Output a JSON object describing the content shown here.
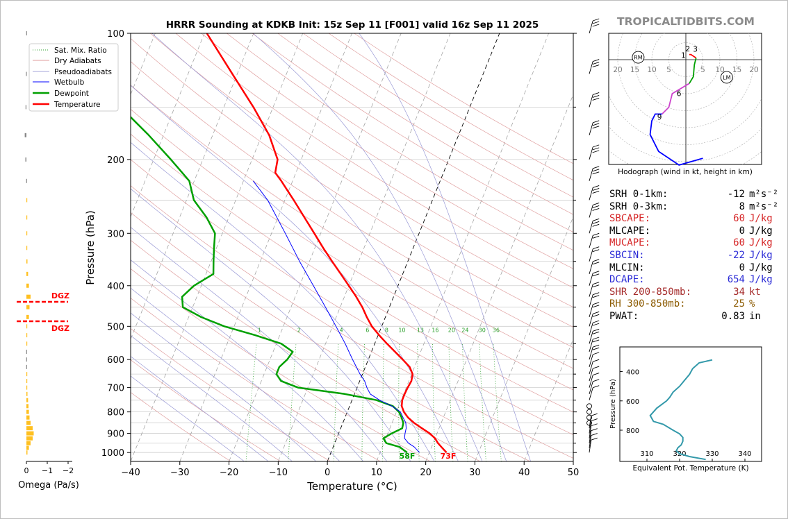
{
  "chart_data": [
    {
      "type": "skew-t log-p sounding",
      "title": "HRRR Sounding at KDKB Init: 15z Sep 11 [F001] valid 16z Sep 11 2025",
      "xlabel": "Temperature (°C)",
      "ylabel": "Pressure (hPa)",
      "xlim": [
        -40,
        50
      ],
      "ylim": [
        1050,
        100
      ],
      "y_scale": "log",
      "x_ticks": [
        "−40",
        "−30",
        "−20",
        "−10",
        "0",
        "10",
        "20",
        "30",
        "40",
        "50"
      ],
      "y_ticks": [
        "100",
        "200",
        "300",
        "400",
        "500",
        "600",
        "700",
        "800",
        "900",
        "1000"
      ],
      "legend": [
        "Sat. Mix. Ratio",
        "Dry Adiabats",
        "Pseudoadiabats",
        "Wetbulb",
        "Dewpoint",
        "Temperature"
      ],
      "legend_position": "upper-left",
      "mixing_ratio_labels": [
        "1",
        "2",
        "4",
        "6",
        "8",
        "10",
        "13",
        "16",
        "20",
        "24",
        "30",
        "36"
      ],
      "surface_labels": {
        "dewpoint": "58F",
        "temperature": "73F"
      },
      "series": [
        {
          "name": "Temperature",
          "color": "#ff0000",
          "points": [
            [
              1000,
              23.5
            ],
            [
              970,
              22
            ],
            [
              950,
              21
            ],
            [
              925,
              20
            ],
            [
              900,
              18.5
            ],
            [
              875,
              16.5
            ],
            [
              850,
              14.5
            ],
            [
              825,
              12.8
            ],
            [
              800,
              11.5
            ],
            [
              775,
              10.6
            ],
            [
              750,
              10.2
            ],
            [
              725,
              10.2
            ],
            [
              700,
              10.3
            ],
            [
              675,
              10.5
            ],
            [
              650,
              10.2
            ],
            [
              625,
              9.0
            ],
            [
              600,
              7.0
            ],
            [
              575,
              4.8
            ],
            [
              550,
              2.5
            ],
            [
              525,
              0.2
            ],
            [
              500,
              -2.0
            ],
            [
              475,
              -3.8
            ],
            [
              450,
              -5.5
            ],
            [
              425,
              -7.6
            ],
            [
              400,
              -10.0
            ],
            [
              375,
              -12.6
            ],
            [
              350,
              -15.4
            ],
            [
              325,
              -18.3
            ],
            [
              300,
              -21.3
            ],
            [
              275,
              -24.6
            ],
            [
              250,
              -28.2
            ],
            [
              225,
              -32.3
            ],
            [
              215,
              -34.2
            ],
            [
              200,
              -34.8
            ],
            [
              175,
              -38.5
            ],
            [
              150,
              -44.0
            ],
            [
              125,
              -51.0
            ],
            [
              100,
              -59.5
            ]
          ]
        },
        {
          "name": "Dewpoint",
          "color": "#00a000",
          "points": [
            [
              1000,
              15.5
            ],
            [
              970,
              13.5
            ],
            [
              950,
              10.5
            ],
            [
              925,
              9.5
            ],
            [
              900,
              10.8
            ],
            [
              875,
              12.5
            ],
            [
              850,
              12.3
            ],
            [
              825,
              11.5
            ],
            [
              800,
              10.5
            ],
            [
              775,
              8.8
            ],
            [
              750,
              5.0
            ],
            [
              725,
              -2.0
            ],
            [
              700,
              -12.0
            ],
            [
              675,
              -16.0
            ],
            [
              650,
              -17.5
            ],
            [
              625,
              -17.5
            ],
            [
              600,
              -16.5
            ],
            [
              575,
              -16.0
            ],
            [
              550,
              -19.0
            ],
            [
              525,
              -25.0
            ],
            [
              500,
              -32.0
            ],
            [
              475,
              -37.5
            ],
            [
              450,
              -42.0
            ],
            [
              425,
              -43.0
            ],
            [
              400,
              -41.5
            ],
            [
              375,
              -38.5
            ],
            [
              350,
              -39.5
            ],
            [
              325,
              -40.5
            ],
            [
              300,
              -41.5
            ],
            [
              275,
              -44.5
            ],
            [
              250,
              -48.5
            ],
            [
              225,
              -51.0
            ],
            [
              200,
              -56.5
            ],
            [
              175,
              -63.0
            ],
            [
              150,
              -71.0
            ],
            [
              125,
              -77.5
            ],
            [
              100,
              -86.5
            ]
          ]
        },
        {
          "name": "Wetbulb",
          "color": "#0000ff",
          "points": [
            [
              1000,
              18
            ],
            [
              970,
              16.5
            ],
            [
              950,
              15
            ],
            [
              925,
              13.8
            ],
            [
              900,
              13.5
            ],
            [
              875,
              13.3
            ],
            [
              850,
              12.8
            ],
            [
              825,
              11.8
            ],
            [
              800,
              10.8
            ],
            [
              775,
              8.6
            ],
            [
              750,
              5.6
            ],
            [
              725,
              3.2
            ],
            [
              700,
              2.0
            ],
            [
              675,
              1.0
            ],
            [
              650,
              -0.5
            ],
            [
              600,
              -3.2
            ],
            [
              550,
              -6.0
            ],
            [
              500,
              -9.3
            ],
            [
              450,
              -13.0
            ],
            [
              400,
              -17.2
            ],
            [
              350,
              -22.0
            ],
            [
              300,
              -27.2
            ],
            [
              250,
              -33.5
            ],
            [
              225,
              -38.0
            ]
          ]
        }
      ],
      "omega_panel": {
        "xlabel": "Omega (Pa/s)",
        "x_ticks": [
          "0",
          "−1",
          "−2"
        ],
        "dgz_labels": [
          "DGZ",
          "DGZ"
        ],
        "values": [
          [
            1000,
            0.05
          ],
          [
            975,
            0.12
          ],
          [
            950,
            0.2
          ],
          [
            925,
            0.3
          ],
          [
            900,
            0.35
          ],
          [
            875,
            0.3
          ],
          [
            850,
            0.2
          ],
          [
            825,
            0.15
          ],
          [
            800,
            0.12
          ],
          [
            775,
            0.1
          ],
          [
            750,
            0.08
          ],
          [
            725,
            0.05
          ],
          [
            700,
            0.03
          ],
          [
            675,
            0.01
          ],
          [
            650,
            0.0
          ],
          [
            625,
            -0.01
          ],
          [
            600,
            -0.01
          ],
          [
            575,
            -0.01
          ],
          [
            550,
            0.0
          ],
          [
            525,
            0.01
          ],
          [
            500,
            0.04
          ],
          [
            475,
            0.12
          ],
          [
            450,
            0.15
          ],
          [
            425,
            0.2
          ],
          [
            400,
            0.12
          ],
          [
            375,
            0.08
          ],
          [
            350,
            0.05
          ],
          [
            325,
            0.03
          ],
          [
            300,
            0.02
          ],
          [
            275,
            0.02
          ],
          [
            250,
            0.01
          ],
          [
            225,
            -0.01
          ],
          [
            200,
            -0.05
          ],
          [
            175,
            -0.08
          ],
          [
            150,
            -0.04
          ],
          [
            125,
            -0.02
          ],
          [
            100,
            -0.01
          ]
        ]
      },
      "wind_barbs": {
        "pressures": [
          1000,
          975,
          950,
          925,
          900,
          875,
          850,
          825,
          800,
          775,
          750,
          725,
          700,
          675,
          650,
          625,
          600,
          575,
          550,
          525,
          500,
          475,
          450,
          425,
          400,
          375,
          350,
          325,
          300,
          275,
          250,
          225,
          200,
          175,
          150,
          125,
          100
        ]
      }
    },
    {
      "type": "hodograph",
      "caption": "Hodograph (wind in kt, height in km)",
      "ring_labels": [
        "20",
        "15",
        "10",
        "5",
        "5",
        "10",
        "15",
        "20"
      ],
      "height_labels": [
        "1",
        "2",
        "3",
        "6",
        "9"
      ],
      "storm_motion_labels": [
        "RM",
        "LM"
      ],
      "points": [
        [
          1,
          1.5
        ],
        [
          1.5,
          1.5
        ],
        [
          3,
          0.5
        ],
        [
          2.5,
          -1.5
        ],
        [
          2.2,
          -5
        ],
        [
          1,
          -7
        ],
        [
          -4,
          -10
        ],
        [
          -5,
          -14
        ],
        [
          -7,
          -16
        ],
        [
          -9,
          -16
        ],
        [
          -10,
          -18
        ],
        [
          -10.5,
          -22
        ],
        [
          -8,
          -27
        ],
        [
          -2,
          -31
        ],
        [
          5,
          -29
        ]
      ],
      "segment_colors": [
        "#ff0000",
        "#00a000",
        "#cc44cc",
        "#0000ff"
      ]
    },
    {
      "type": "line",
      "xlabel": "Equivalent Pot. Temperature (K)",
      "ylabel": "Pressure (hPa)",
      "x_ticks": [
        "310",
        "320",
        "330",
        "340"
      ],
      "y_ticks": [
        "400",
        "600",
        "800"
      ],
      "color": "#3399aa",
      "points": [
        [
          1000,
          328
        ],
        [
          980,
          323
        ],
        [
          960,
          320
        ],
        [
          940,
          319
        ],
        [
          920,
          319.5
        ],
        [
          900,
          320.5
        ],
        [
          875,
          321
        ],
        [
          850,
          321
        ],
        [
          825,
          320
        ],
        [
          800,
          318
        ],
        [
          760,
          315
        ],
        [
          740,
          312
        ],
        [
          700,
          311
        ],
        [
          650,
          313
        ],
        [
          600,
          316
        ],
        [
          575,
          317
        ],
        [
          540,
          318
        ],
        [
          500,
          320
        ],
        [
          460,
          321.5
        ],
        [
          420,
          323
        ],
        [
          380,
          324
        ],
        [
          340,
          326
        ],
        [
          320,
          330
        ]
      ]
    }
  ],
  "site_label": "TROPICALTIDBITS.COM",
  "stats": [
    {
      "label": "SRH 0-1km:",
      "value": "-12",
      "unit": "m²s⁻²",
      "color": "#000000"
    },
    {
      "label": "SRH 0-3km:",
      "value": "8",
      "unit": "m²s⁻²",
      "color": "#000000"
    },
    {
      "label": "SBCAPE:",
      "value": "60",
      "unit": "J/kg",
      "color": "#d62728"
    },
    {
      "label": "MLCAPE:",
      "value": "0",
      "unit": "J/kg",
      "color": "#000000"
    },
    {
      "label": "MUCAPE:",
      "value": "60",
      "unit": "J/kg",
      "color": "#d62728"
    },
    {
      "label": "SBCIN:",
      "value": "-22",
      "unit": "J/kg",
      "color": "#2a2ad6"
    },
    {
      "label": "MLCIN:",
      "value": "0",
      "unit": "J/kg",
      "color": "#000000"
    },
    {
      "label": "DCAPE:",
      "value": "654",
      "unit": "J/kg",
      "color": "#2a2ad6"
    },
    {
      "label": "SHR 200-850mb:",
      "value": "34",
      "unit": "kt",
      "color": "#a52a2a"
    },
    {
      "label": "RH 300-850mb:",
      "value": "25",
      "unit": "%",
      "color": "#8b5a00"
    },
    {
      "label": "PWAT:",
      "value": "0.83",
      "unit": "in",
      "color": "#000000"
    }
  ]
}
